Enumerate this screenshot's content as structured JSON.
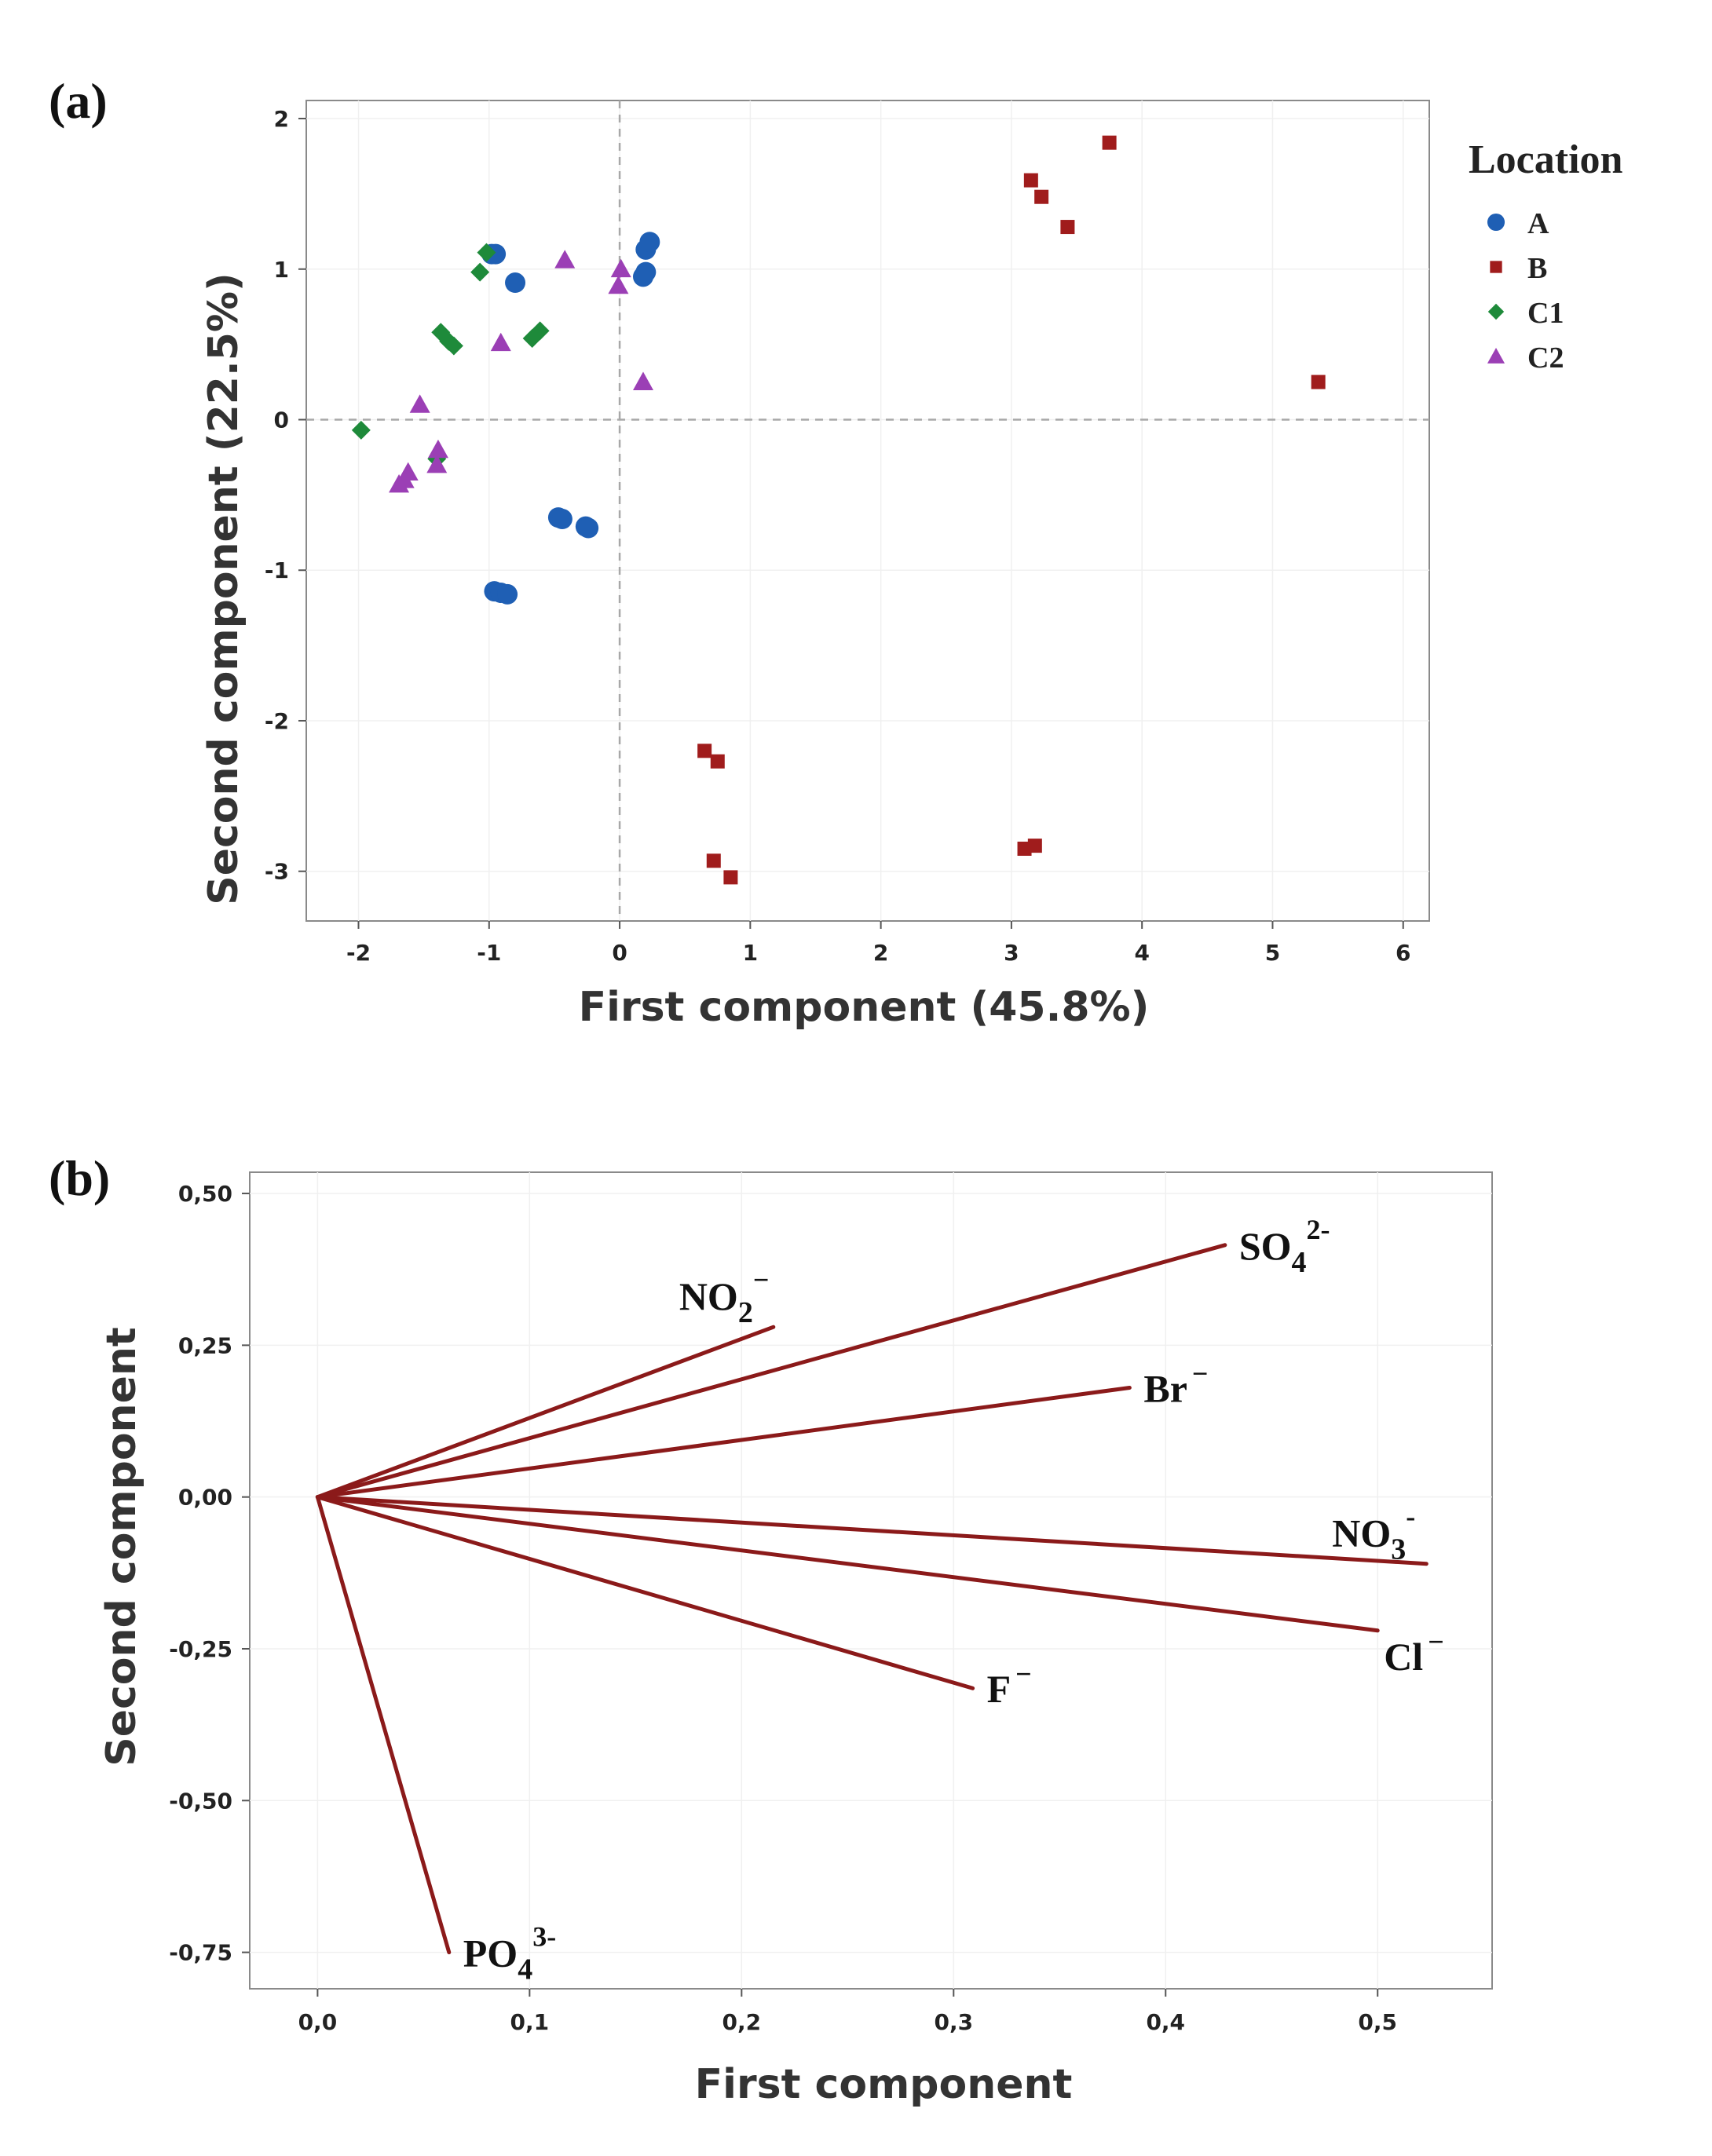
{
  "chart_data": [
    {
      "type": "scatter",
      "panel_label": "(a)",
      "title": "",
      "xlabel": "First component  (45.8%)",
      "ylabel": "Second component  (22.5%)",
      "xlim": [
        -2.4,
        6.2
      ],
      "ylim": [
        -3.33,
        2.12
      ],
      "xticks": [
        -2,
        -1,
        0,
        1,
        2,
        3,
        4,
        5,
        6
      ],
      "yticks": [
        2,
        1,
        0,
        -1,
        -2,
        -3
      ],
      "reference_lines": {
        "x": 0,
        "y": 0,
        "style": "dashed"
      },
      "grid": true,
      "legend": {
        "title": "Location",
        "placement": "right"
      },
      "series": [
        {
          "name": "A",
          "marker": "circle",
          "color": "#1f5fb4",
          "points": [
            [
              -0.98,
              1.1
            ],
            [
              -0.95,
              1.1
            ],
            [
              -0.8,
              0.91
            ],
            [
              0.18,
              0.95
            ],
            [
              0.2,
              0.98
            ],
            [
              0.2,
              1.13
            ],
            [
              0.23,
              1.18
            ],
            [
              -0.47,
              -0.65
            ],
            [
              -0.44,
              -0.66
            ],
            [
              -0.26,
              -0.71
            ],
            [
              -0.24,
              -0.72
            ],
            [
              -0.96,
              -1.14
            ],
            [
              -0.91,
              -1.15
            ],
            [
              -0.86,
              -1.16
            ]
          ]
        },
        {
          "name": "B",
          "marker": "square",
          "color": "#a01c1c",
          "points": [
            [
              3.75,
              1.84
            ],
            [
              3.15,
              1.59
            ],
            [
              3.23,
              1.48
            ],
            [
              3.43,
              1.28
            ],
            [
              5.35,
              0.25
            ],
            [
              0.65,
              -2.2
            ],
            [
              0.75,
              -2.27
            ],
            [
              0.72,
              -2.93
            ],
            [
              0.85,
              -3.04
            ],
            [
              3.1,
              -2.85
            ],
            [
              3.18,
              -2.83
            ]
          ]
        },
        {
          "name": "C1",
          "marker": "diamond",
          "color": "#1e8a3a",
          "points": [
            [
              -1.02,
              1.11
            ],
            [
              -1.07,
              0.98
            ],
            [
              -1.37,
              0.58
            ],
            [
              -1.31,
              0.52
            ],
            [
              -1.27,
              0.49
            ],
            [
              -0.67,
              0.54
            ],
            [
              -0.61,
              0.59
            ],
            [
              -1.98,
              -0.07
            ],
            [
              -1.4,
              -0.26
            ]
          ]
        },
        {
          "name": "C2",
          "marker": "triangle",
          "color": "#9b3fb5",
          "points": [
            [
              -0.42,
              1.06
            ],
            [
              0.01,
              1.0
            ],
            [
              -0.01,
              0.89
            ],
            [
              0.18,
              0.25
            ],
            [
              -0.91,
              0.51
            ],
            [
              -1.53,
              0.1
            ],
            [
              -1.39,
              -0.2
            ],
            [
              -1.4,
              -0.3
            ],
            [
              -1.62,
              -0.35
            ],
            [
              -1.65,
              -0.4
            ],
            [
              -1.69,
              -0.43
            ]
          ]
        }
      ]
    },
    {
      "type": "line",
      "subtype": "loading-vectors",
      "panel_label": "(b)",
      "title": "",
      "xlabel": "First component",
      "ylabel": "Second component",
      "xlim": [
        -0.032,
        0.554
      ],
      "ylim": [
        -0.81,
        0.535
      ],
      "xticks": [
        {
          "value": 0.0,
          "label": "0,0"
        },
        {
          "value": 0.1,
          "label": "0,1"
        },
        {
          "value": 0.2,
          "label": "0,2"
        },
        {
          "value": 0.3,
          "label": "0,3"
        },
        {
          "value": 0.4,
          "label": "0,4"
        },
        {
          "value": 0.5,
          "label": "0,5"
        }
      ],
      "yticks": [
        {
          "value": 0.5,
          "label": "0,50"
        },
        {
          "value": 0.25,
          "label": "0,25"
        },
        {
          "value": 0.0,
          "label": "0,00"
        },
        {
          "value": -0.25,
          "label": "-0,25"
        },
        {
          "value": -0.5,
          "label": "-0,50"
        },
        {
          "value": -0.75,
          "label": "-0,75"
        }
      ],
      "grid": true,
      "line_color": "#8b1a1a",
      "vectors": [
        {
          "base": "NO",
          "sub": "2",
          "sup": "−",
          "x": 0.215,
          "y": 0.28,
          "label_pos": "above"
        },
        {
          "base": "SO",
          "sub": "4",
          "sup": "2-",
          "x": 0.428,
          "y": 0.415,
          "label_pos": "right"
        },
        {
          "base": "Br",
          "sub": "",
          "sup": "−",
          "x": 0.383,
          "y": 0.18,
          "label_pos": "right"
        },
        {
          "base": "NO",
          "sub": "3",
          "sup": "-",
          "x": 0.523,
          "y": -0.11,
          "label_pos": "above"
        },
        {
          "base": "Cl",
          "sub": "",
          "sup": "−",
          "x": 0.5,
          "y": -0.22,
          "label_pos": "below"
        },
        {
          "base": "F",
          "sub": "",
          "sup": "−",
          "x": 0.309,
          "y": -0.315,
          "label_pos": "right"
        },
        {
          "base": "PO",
          "sub": "4",
          "sup": "3-",
          "x": 0.062,
          "y": -0.75,
          "label_pos": "right"
        }
      ]
    }
  ]
}
